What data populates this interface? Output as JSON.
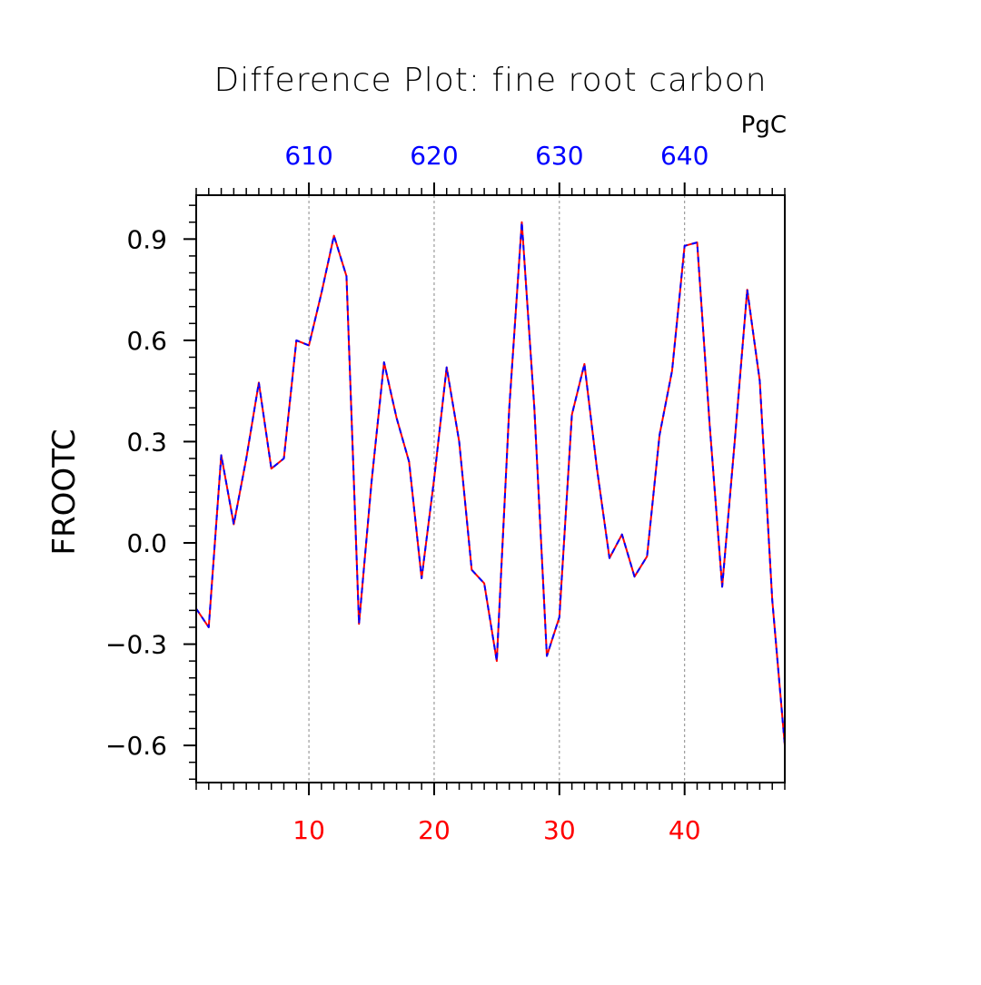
{
  "chart_data": {
    "type": "line",
    "title": "Difference Plot: fine root carbon",
    "units_label": "PgC",
    "ylabel": "FROOTC",
    "xlabel": "",
    "x": [
      1,
      2,
      3,
      4,
      5,
      6,
      7,
      8,
      9,
      10,
      11,
      12,
      13,
      14,
      15,
      16,
      17,
      18,
      19,
      20,
      21,
      22,
      23,
      24,
      25,
      26,
      27,
      28,
      29,
      30,
      31,
      32,
      33,
      34,
      35,
      36,
      37,
      38,
      39,
      40,
      41,
      42,
      43,
      44,
      45,
      46,
      47,
      48
    ],
    "xlim": [
      1,
      48
    ],
    "ylim": [
      -0.71,
      1.03
    ],
    "grid": true,
    "x_ticks": [
      10,
      20,
      30,
      40
    ],
    "x_ticks_top": [
      610,
      620,
      630,
      640
    ],
    "y_ticks": [
      0.9,
      0.6,
      0.3,
      0.0,
      -0.3,
      -0.6
    ],
    "y_tick_labels": [
      "0.9",
      "0.6",
      "0.3",
      "0.0",
      "−0.3",
      "−0.6"
    ],
    "series": [
      {
        "color": "#ff0000",
        "style": "solid",
        "values": [
          -0.195,
          -0.25,
          0.26,
          0.055,
          0.25,
          0.475,
          0.22,
          0.25,
          0.6,
          0.585,
          0.74,
          0.91,
          0.79,
          -0.24,
          0.18,
          0.535,
          0.37,
          0.24,
          -0.105,
          0.19,
          0.52,
          0.3,
          -0.08,
          -0.12,
          -0.35,
          0.4,
          0.95,
          0.4,
          -0.335,
          -0.22,
          0.38,
          0.53,
          0.22,
          -0.045,
          0.025,
          -0.1,
          -0.04,
          0.32,
          0.51,
          0.88,
          0.89,
          0.35,
          -0.13,
          0.3,
          0.75,
          0.48,
          -0.17,
          -0.6
        ]
      },
      {
        "color": "#0000ff",
        "style": "dashed",
        "values": [
          -0.195,
          -0.25,
          0.26,
          0.055,
          0.25,
          0.475,
          0.22,
          0.25,
          0.6,
          0.585,
          0.74,
          0.91,
          0.79,
          -0.24,
          0.18,
          0.535,
          0.37,
          0.24,
          -0.105,
          0.19,
          0.52,
          0.3,
          -0.08,
          -0.12,
          -0.35,
          0.4,
          0.95,
          0.4,
          -0.335,
          -0.22,
          0.38,
          0.53,
          0.22,
          -0.045,
          0.025,
          -0.1,
          -0.04,
          0.32,
          0.51,
          0.88,
          0.89,
          0.35,
          -0.13,
          0.3,
          0.75,
          0.48,
          -0.17,
          -0.6
        ]
      }
    ],
    "colors": {
      "axis": "#000000",
      "grid": "#888888",
      "bottom_tick_labels": "#ff0000",
      "top_tick_labels": "#0000ff"
    }
  }
}
